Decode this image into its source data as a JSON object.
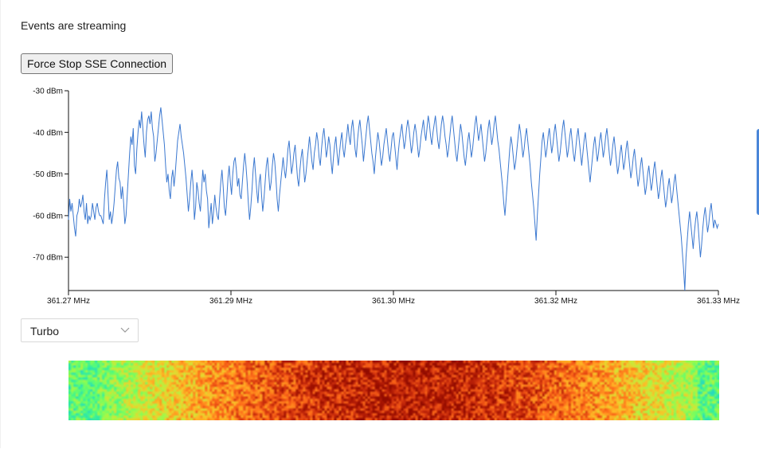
{
  "status": {
    "text": "Events are streaming"
  },
  "controls": {
    "stop_button_label": "Force Stop SSE Connection"
  },
  "colormap": {
    "selected": "Turbo",
    "icon": "chevron-down-icon"
  },
  "colors": {
    "line": "#3b78d0",
    "side_tab": "#4a86d8"
  },
  "chart_data": {
    "type": "line",
    "x_range": [
      361.27,
      361.33
    ],
    "x_ticks": [
      361.27,
      361.29,
      361.3,
      361.32,
      361.33
    ],
    "x_tick_labels": [
      "361.27 MHz",
      "361.29 MHz",
      "361.30 MHz",
      "361.32 MHz",
      "361.33 MHz"
    ],
    "y_range": [
      -78,
      -30
    ],
    "y_ticks": [
      -30,
      -40,
      -50,
      -60,
      -70
    ],
    "y_tick_labels": [
      "-30 dBm",
      "-40 dBm",
      "-50 dBm",
      "-60 dBm",
      "-70 dBm"
    ],
    "series": [
      {
        "values": [
          -61,
          -56,
          -59,
          -57,
          -60,
          -63,
          -65,
          -60,
          -59,
          -56,
          -58,
          -57,
          -55,
          -59,
          -61,
          -57,
          -62,
          -60,
          -61,
          -60,
          -57,
          -59,
          -61,
          -58,
          -57,
          -59,
          -60,
          -60,
          -61,
          -62,
          -56,
          -52,
          -49,
          -55,
          -61,
          -59,
          -62,
          -60,
          -57,
          -53,
          -49,
          -47,
          -51,
          -52,
          -56,
          -53,
          -57,
          -62,
          -60,
          -55,
          -50,
          -45,
          -41,
          -43,
          -39,
          -48,
          -50,
          -44,
          -40,
          -37,
          -39,
          -35,
          -39,
          -43,
          -46,
          -40,
          -37,
          -36,
          -38,
          -35,
          -39,
          -41,
          -47,
          -45,
          -42,
          -39,
          -36,
          -34,
          -37,
          -40,
          -43,
          -48,
          -52,
          -50,
          -54,
          -56,
          -51,
          -49,
          -53,
          -50,
          -46,
          -42,
          -40,
          -38,
          -41,
          -43,
          -45,
          -48,
          -51,
          -55,
          -59,
          -56,
          -52,
          -49,
          -53,
          -61,
          -58,
          -52,
          -54,
          -57,
          -59,
          -54,
          -49,
          -52,
          -50,
          -54,
          -56,
          -63,
          -60,
          -57,
          -62,
          -59,
          -55,
          -58,
          -60,
          -61,
          -56,
          -52,
          -49,
          -53,
          -58,
          -60,
          -56,
          -51,
          -48,
          -52,
          -55,
          -50,
          -47,
          -46,
          -49,
          -53,
          -51,
          -55,
          -56,
          -52,
          -48,
          -45,
          -48,
          -52,
          -57,
          -61,
          -58,
          -54,
          -49,
          -46,
          -50,
          -54,
          -57,
          -52,
          -50,
          -55,
          -59,
          -56,
          -52,
          -48,
          -46,
          -50,
          -54,
          -52,
          -48,
          -45,
          -47,
          -51,
          -56,
          -59,
          -55,
          -52,
          -49,
          -46,
          -49,
          -51,
          -48,
          -44,
          -42,
          -46,
          -50,
          -48,
          -45,
          -43,
          -47,
          -51,
          -53,
          -49,
          -46,
          -44,
          -48,
          -52,
          -50,
          -47,
          -44,
          -41,
          -44,
          -47,
          -49,
          -45,
          -43,
          -40,
          -42,
          -46,
          -48,
          -44,
          -41,
          -39,
          -42,
          -46,
          -44,
          -41,
          -43,
          -47,
          -50,
          -46,
          -43,
          -41,
          -45,
          -48,
          -45,
          -42,
          -40,
          -44,
          -46,
          -43,
          -41,
          -38,
          -41,
          -43,
          -39,
          -37,
          -40,
          -44,
          -46,
          -42,
          -39,
          -37,
          -40,
          -43,
          -47,
          -44,
          -41,
          -38,
          -36,
          -39,
          -42,
          -45,
          -47,
          -50,
          -46,
          -43,
          -40,
          -42,
          -45,
          -48,
          -46,
          -43,
          -41,
          -39,
          -42,
          -45,
          -47,
          -44,
          -41,
          -40,
          -43,
          -46,
          -49,
          -45,
          -42,
          -40,
          -38,
          -41,
          -44,
          -42,
          -39,
          -37,
          -39,
          -42,
          -45,
          -43,
          -40,
          -38,
          -40,
          -43,
          -46,
          -44,
          -41,
          -39,
          -37,
          -40,
          -42,
          -39,
          -36,
          -38,
          -41,
          -43,
          -40,
          -38,
          -36,
          -39,
          -42,
          -44,
          -41,
          -38,
          -36,
          -38,
          -41,
          -43,
          -46,
          -44,
          -41,
          -38,
          -36,
          -39,
          -42,
          -45,
          -47,
          -44,
          -41,
          -38,
          -40,
          -43,
          -46,
          -48,
          -45,
          -42,
          -40,
          -43,
          -46,
          -44,
          -41,
          -38,
          -36,
          -39,
          -42,
          -40,
          -38,
          -41,
          -44,
          -47,
          -45,
          -42,
          -39,
          -37,
          -40,
          -43,
          -41,
          -38,
          -36,
          -39,
          -42,
          -44,
          -47,
          -50,
          -53,
          -57,
          -60,
          -56,
          -52,
          -48,
          -44,
          -41,
          -43,
          -46,
          -49,
          -47,
          -44,
          -41,
          -38,
          -40,
          -43,
          -46,
          -44,
          -41,
          -39,
          -42,
          -45,
          -48,
          -52,
          -55,
          -58,
          -62,
          -66,
          -60,
          -55,
          -50,
          -46,
          -42,
          -40,
          -43,
          -46,
          -44,
          -41,
          -39,
          -42,
          -45,
          -43,
          -40,
          -38,
          -41,
          -44,
          -47,
          -45,
          -42,
          -39,
          -37,
          -40,
          -43,
          -46,
          -44,
          -41,
          -39,
          -42,
          -45,
          -47,
          -44,
          -41,
          -39,
          -42,
          -45,
          -48,
          -45,
          -42,
          -40,
          -43,
          -46,
          -49,
          -52,
          -49,
          -46,
          -43,
          -41,
          -44,
          -47,
          -45,
          -42,
          -40,
          -43,
          -46,
          -44,
          -41,
          -39,
          -42,
          -45,
          -48,
          -46,
          -43,
          -41,
          -44,
          -47,
          -50,
          -48,
          -45,
          -43,
          -46,
          -49,
          -47,
          -44,
          -42,
          -45,
          -48,
          -51,
          -49,
          -46,
          -44,
          -47,
          -50,
          -53,
          -51,
          -48,
          -46,
          -49,
          -52,
          -55,
          -53,
          -50,
          -48,
          -51,
          -54,
          -52,
          -49,
          -47,
          -50,
          -53,
          -56,
          -54,
          -51,
          -49,
          -52,
          -55,
          -58,
          -56,
          -53,
          -51,
          -54,
          -57,
          -55,
          -52,
          -50,
          -53,
          -56,
          -59,
          -62,
          -65,
          -69,
          -73,
          -78,
          -70,
          -66,
          -62,
          -59,
          -62,
          -65,
          -68,
          -64,
          -61,
          -59,
          -62,
          -66,
          -70,
          -67,
          -63,
          -60,
          -58,
          -61,
          -64,
          -62,
          -59,
          -57,
          -60,
          -63,
          -61,
          -62,
          -63,
          -62
        ]
      }
    ]
  }
}
